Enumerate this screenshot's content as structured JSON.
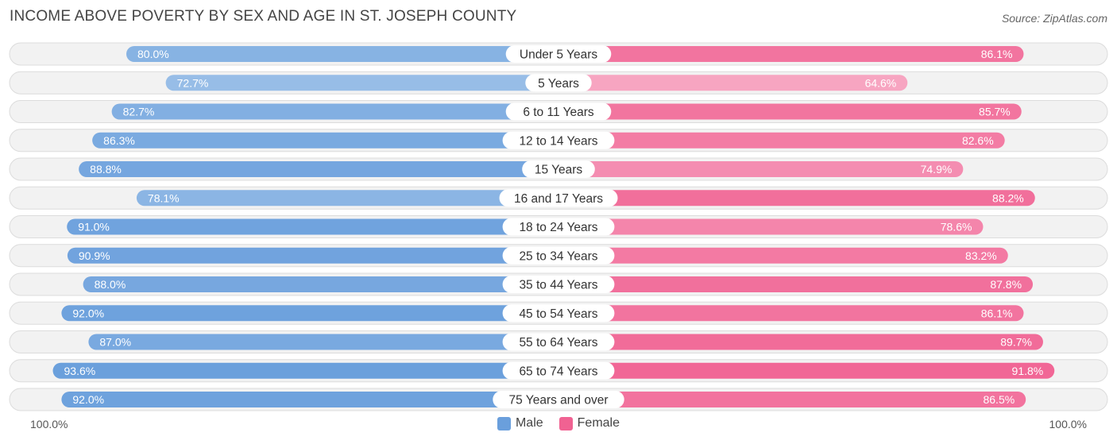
{
  "title": "INCOME ABOVE POVERTY BY SEX AND AGE IN ST. JOSEPH COUNTY",
  "source": "Source: ZipAtlas.com",
  "axis": {
    "left_label": "100.0%",
    "right_label": "100.0%"
  },
  "legend": {
    "male_label": "Male",
    "female_label": "Female"
  },
  "colors": {
    "male": "#6a9fdc",
    "male_light": "#a9c9ec",
    "female": "#f06292",
    "female_light": "#f7a6c2",
    "row_bg": "#f2f2f2",
    "row_border": "#dcdcdc"
  },
  "chart_data": {
    "type": "bar",
    "orientation": "horizontal-diverging",
    "title": "INCOME ABOVE POVERTY BY SEX AND AGE IN ST. JOSEPH COUNTY",
    "xlim": [
      0,
      100
    ],
    "unit": "%",
    "categories": [
      "Under 5 Years",
      "5 Years",
      "6 to 11 Years",
      "12 to 14 Years",
      "15 Years",
      "16 and 17 Years",
      "18 to 24 Years",
      "25 to 34 Years",
      "35 to 44 Years",
      "45 to 54 Years",
      "55 to 64 Years",
      "65 to 74 Years",
      "75 Years and over"
    ],
    "series": [
      {
        "name": "Male",
        "values": [
          80.0,
          72.7,
          82.7,
          86.3,
          88.8,
          78.1,
          91.0,
          90.9,
          88.0,
          92.0,
          87.0,
          93.6,
          92.0
        ]
      },
      {
        "name": "Female",
        "values": [
          86.1,
          64.6,
          85.7,
          82.6,
          74.9,
          88.2,
          78.6,
          83.2,
          87.8,
          86.1,
          89.7,
          91.8,
          86.5
        ]
      }
    ],
    "labels": {
      "Male": [
        "80.0%",
        "72.7%",
        "82.7%",
        "86.3%",
        "88.8%",
        "78.1%",
        "91.0%",
        "90.9%",
        "88.0%",
        "92.0%",
        "87.0%",
        "93.6%",
        "92.0%"
      ],
      "Female": [
        "86.1%",
        "64.6%",
        "85.7%",
        "82.6%",
        "74.9%",
        "88.2%",
        "78.6%",
        "83.2%",
        "87.8%",
        "86.1%",
        "89.7%",
        "91.8%",
        "86.5%"
      ]
    }
  }
}
